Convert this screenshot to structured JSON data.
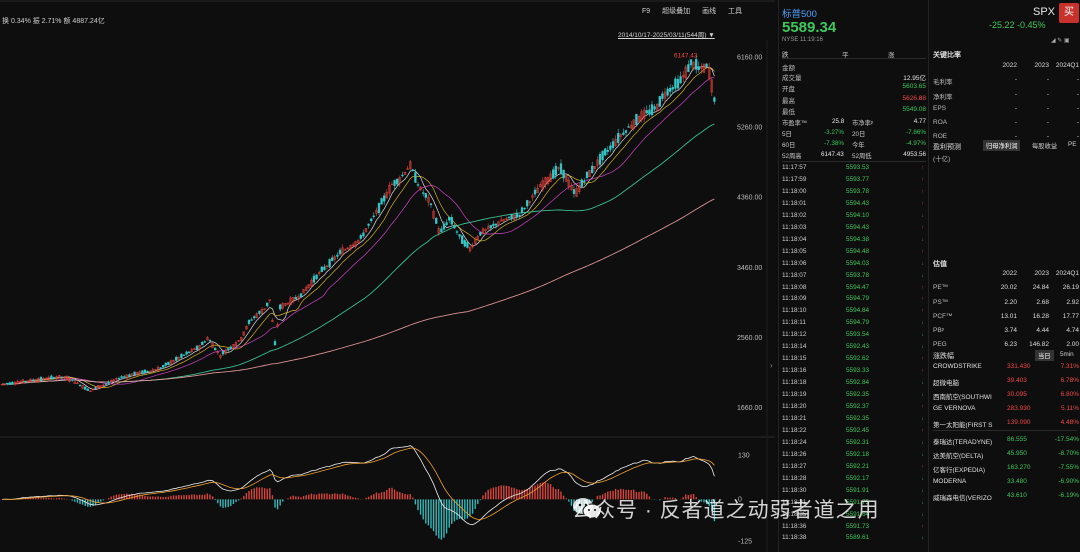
{
  "header": {
    "stats": "换 0.34%  振 2.71%  额 4887.24亿",
    "tools": [
      "F9",
      "超级叠加",
      "画线",
      "工具"
    ],
    "date_range": "2014/10/17-2025/03/11(544周)"
  },
  "chart_data": {
    "type": "candlestick-weekly",
    "price_axis_ticks": [
      6160.0,
      5260.0,
      4360.0,
      3460.0,
      2560.0,
      1660.0
    ],
    "price_ylim": [
      1480,
      6230
    ],
    "high_label": "6147.43",
    "macd_axis_ticks": [
      130,
      0,
      -125
    ],
    "macd_ylim": [
      -145,
      165
    ],
    "price_path_keypoints": [
      [
        0,
        1960
      ],
      [
        60,
        2060
      ],
      [
        70,
        2030
      ],
      [
        90,
        1880
      ],
      [
        120,
        2050
      ],
      [
        160,
        2170
      ],
      [
        200,
        2450
      ],
      [
        208,
        2560
      ],
      [
        220,
        2330
      ],
      [
        240,
        2530
      ],
      [
        250,
        2780
      ],
      [
        265,
        2940
      ],
      [
        270,
        3050
      ],
      [
        275,
        2480
      ],
      [
        280,
        2950
      ],
      [
        300,
        3100
      ],
      [
        320,
        3400
      ],
      [
        340,
        3650
      ],
      [
        360,
        3820
      ],
      [
        380,
        4250
      ],
      [
        392,
        4530
      ],
      [
        400,
        4600
      ],
      [
        410,
        4780
      ],
      [
        420,
        4480
      ],
      [
        430,
        4300
      ],
      [
        440,
        3900
      ],
      [
        450,
        4100
      ],
      [
        460,
        3850
      ],
      [
        470,
        3700
      ],
      [
        480,
        3900
      ],
      [
        500,
        4050
      ],
      [
        520,
        4150
      ],
      [
        540,
        4500
      ],
      [
        560,
        4750
      ],
      [
        575,
        4400
      ],
      [
        585,
        4600
      ],
      [
        600,
        4850
      ],
      [
        620,
        5150
      ],
      [
        640,
        5400
      ],
      [
        655,
        5500
      ],
      [
        665,
        5700
      ],
      [
        680,
        5850
      ],
      [
        692,
        6100
      ],
      [
        700,
        6000
      ],
      [
        708,
        6050
      ],
      [
        715,
        5589
      ]
    ],
    "ma_colors": [
      "#f5f5f5",
      "#e8c432",
      "#e04ad8",
      "#3ecfa0",
      "#f0a0a0"
    ],
    "indicator_lines": [
      "#f0f0f0",
      "#f0a030"
    ]
  },
  "quote": {
    "name": "标普500",
    "price": "5589.34",
    "sub": "NYSE  11:19:16",
    "tabs": [
      "跌",
      "平",
      "涨"
    ],
    "amount_label": "金额",
    "amount_value": "",
    "volume_label": "成交量",
    "volume_value": "12.95亿",
    "open_label": "开盘",
    "open_value": "5603.65",
    "high_label": "最高",
    "high_value": "5626.88",
    "low_label": "最低",
    "low_value": "5549.08",
    "pe_label": "市盈率™",
    "pe_value": "25.8",
    "pb_label": "市净率ᵖ",
    "pb_value": "4.77",
    "d5_label": "5日",
    "d5_value": "-3.27%",
    "d20_label": "20日",
    "d20_value": "-7.86%",
    "d60_label": "60日",
    "d60_value": "-7.38%",
    "ytd_label": "今年",
    "ytd_value": "-4.97%",
    "w52h_label": "52周高",
    "w52h_value": "6147.43",
    "w52l_label": "52周低",
    "w52l_value": "4953.56",
    "ticks": [
      {
        "t": "11:17:57",
        "p": "5593.53",
        "d": "up"
      },
      {
        "t": "11:17:59",
        "p": "5593.77",
        "d": "up"
      },
      {
        "t": "11:18:00",
        "p": "5593.78",
        "d": "up"
      },
      {
        "t": "11:18:01",
        "p": "5594.43",
        "d": "up"
      },
      {
        "t": "11:18:02",
        "p": "5594.10",
        "d": "down"
      },
      {
        "t": "11:18:03",
        "p": "5594.43",
        "d": "up"
      },
      {
        "t": "11:18:04",
        "p": "5594.38",
        "d": "down"
      },
      {
        "t": "11:18:05",
        "p": "5594.48",
        "d": "up"
      },
      {
        "t": "11:18:06",
        "p": "5594.03",
        "d": "down"
      },
      {
        "t": "11:18:07",
        "p": "5593.78",
        "d": "down"
      },
      {
        "t": "11:18:08",
        "p": "5594.47",
        "d": "up"
      },
      {
        "t": "11:18:09",
        "p": "5594.79",
        "d": "up"
      },
      {
        "t": "11:18:10",
        "p": "5594.84",
        "d": "up"
      },
      {
        "t": "11:18:11",
        "p": "5594.79",
        "d": "down"
      },
      {
        "t": "11:18:12",
        "p": "5593.54",
        "d": "down"
      },
      {
        "t": "11:18:14",
        "p": "5592.43",
        "d": "down"
      },
      {
        "t": "11:18:15",
        "p": "5592.62",
        "d": "up"
      },
      {
        "t": "11:18:16",
        "p": "5593.33",
        "d": "up"
      },
      {
        "t": "11:18:18",
        "p": "5592.84",
        "d": "down"
      },
      {
        "t": "11:18:19",
        "p": "5592.35",
        "d": "down"
      },
      {
        "t": "11:18:20",
        "p": "5592.37",
        "d": "up"
      },
      {
        "t": "11:18:21",
        "p": "5592.35",
        "d": "down"
      },
      {
        "t": "11:18:22",
        "p": "5592.45",
        "d": "up"
      },
      {
        "t": "11:18:24",
        "p": "5592.31",
        "d": "down"
      },
      {
        "t": "11:18:26",
        "p": "5592.18",
        "d": "down"
      },
      {
        "t": "11:18:27",
        "p": "5592.21",
        "d": "up"
      },
      {
        "t": "11:18:28",
        "p": "5592.17",
        "d": "down"
      },
      {
        "t": "11:18:30",
        "p": "5591.91",
        "d": "down"
      },
      {
        "t": "11:18:31",
        "p": "5591.75",
        "d": "down"
      },
      {
        "t": "11:18:35",
        "p": "5591.64",
        "d": "down"
      },
      {
        "t": "11:18:36",
        "p": "5591.73",
        "d": "up"
      },
      {
        "t": "11:18:38",
        "p": "5589.61",
        "d": "down"
      }
    ]
  },
  "right": {
    "symbol": "SPX",
    "buy_label": "买",
    "change": "-25.22  -0.45%",
    "icons": "◢ ✎ ▣",
    "ratios_title": "关键比率",
    "years": [
      "2022",
      "2023",
      "2024Q1"
    ],
    "ratios": [
      {
        "label": "毛利率",
        "v": [
          "-",
          "-",
          "-"
        ]
      },
      {
        "label": "净利率",
        "v": [
          "-",
          "-",
          "-"
        ]
      },
      {
        "label": "EPS",
        "v": [
          "-",
          "-",
          "-"
        ]
      },
      {
        "label": "ROA",
        "v": [
          "-",
          "-",
          "-"
        ]
      },
      {
        "label": "ROE",
        "v": [
          "-",
          "-",
          "-"
        ]
      }
    ],
    "forecast_title": "盈利预测",
    "forecast_unit": "(十亿)",
    "forecast_tabs": [
      "归母净利润",
      "每股收益",
      "PE"
    ],
    "valuation_title": "估值",
    "valuation": [
      {
        "label": "PE™",
        "v": [
          "20.02",
          "24.84",
          "26.19"
        ]
      },
      {
        "label": "PS™",
        "v": [
          "2.20",
          "2.68",
          "2.92"
        ]
      },
      {
        "label": "PCF™",
        "v": [
          "13.01",
          "16.28",
          "17.77"
        ]
      },
      {
        "label": "PBᵖ",
        "v": [
          "3.74",
          "4.44",
          "4.74"
        ]
      },
      {
        "label": "PEG",
        "v": [
          "6.23",
          "146.82",
          "2.00"
        ]
      }
    ],
    "movers_title": "涨跌幅",
    "movers_tabs": [
      "当日",
      "5min"
    ],
    "gainers": [
      {
        "name": "CROWDSTRIKE",
        "price": "331.430",
        "pct": "7.31%"
      },
      {
        "name": "超微电脑",
        "price": "39.403",
        "pct": "6.78%"
      },
      {
        "name": "西南航空(SOUTHWI",
        "price": "30.095",
        "pct": "6.80%"
      },
      {
        "name": "GE VERNOVA",
        "price": "283.930",
        "pct": "5.11%"
      },
      {
        "name": "第一太阳能(FIRST S",
        "price": "139.090",
        "pct": "4.48%"
      }
    ],
    "losers": [
      {
        "name": "泰瑞达(TERADYNE)",
        "price": "86.555",
        "pct": "-17.54%"
      },
      {
        "name": "达美航空(DELTA)",
        "price": "45.950",
        "pct": "-8.70%"
      },
      {
        "name": "亿客行(EXPEDIA)",
        "price": "163.270",
        "pct": "-7.55%"
      },
      {
        "name": "MODERNA",
        "price": "33.480",
        "pct": "-6.90%"
      },
      {
        "name": "威瑞森电信(VERIZO",
        "price": "43.610",
        "pct": "-6.19%"
      }
    ]
  },
  "watermark": "公众号 · 反者道之动弱者道之用"
}
